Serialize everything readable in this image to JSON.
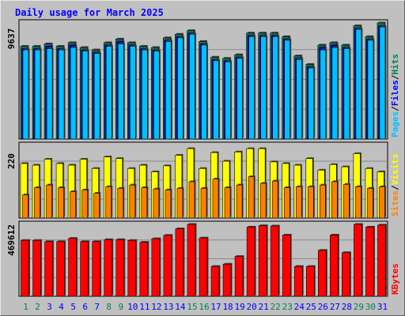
{
  "chart_data": {
    "type": "bar",
    "title": "Daily usage for March 2025",
    "categories": [
      "1",
      "2",
      "3",
      "4",
      "5",
      "6",
      "7",
      "8",
      "9",
      "10",
      "11",
      "12",
      "13",
      "14",
      "15",
      "16",
      "17",
      "18",
      "19",
      "20",
      "21",
      "22",
      "23",
      "24",
      "25",
      "26",
      "27",
      "28",
      "29",
      "30",
      "31"
    ],
    "weekend_days": [
      "1",
      "2",
      "8",
      "9",
      "15",
      "16",
      "22",
      "23",
      "29",
      "30"
    ],
    "colors": {
      "title": "#0000ff",
      "hits": "#00805c",
      "files": "#0000ff",
      "pages": "#00c0ff",
      "visits": "#ffff00",
      "sites": "#ff8000",
      "kbytes": "#ff0000",
      "weekend_label": "#00805c",
      "weekday_label": "#0000ff",
      "background": "#c0c0c0"
    },
    "panels": [
      {
        "id": "hits-files-pages",
        "max_label": "9637",
        "ylim": [
          0,
          9637
        ],
        "legend": [
          "Pages",
          "Files",
          "Hits"
        ],
        "series": [
          {
            "name": "Hits",
            "values": [
              7700,
              7700,
              7900,
              7700,
              8000,
              7600,
              7400,
              8000,
              8300,
              8000,
              7700,
              7600,
              8400,
              8700,
              9000,
              8100,
              6800,
              6700,
              7000,
              8800,
              8800,
              8800,
              8500,
              6900,
              6200,
              7800,
              8000,
              7800,
              9400,
              8500,
              9637
            ]
          },
          {
            "name": "Files",
            "values": [
              7500,
              7500,
              7700,
              7500,
              7800,
              7400,
              7200,
              7800,
              8100,
              7800,
              7500,
              7400,
              8200,
              8500,
              8800,
              7900,
              6600,
              6500,
              6800,
              8600,
              8600,
              8600,
              8300,
              6700,
              6000,
              7600,
              7800,
              7600,
              9200,
              8300,
              9400
            ]
          },
          {
            "name": "Pages",
            "values": [
              7400,
              7400,
              7500,
              7400,
              7600,
              7300,
              7100,
              7700,
              7900,
              7700,
              7400,
              7300,
              8100,
              8400,
              8700,
              7800,
              6500,
              6400,
              6700,
              8500,
              8500,
              8500,
              8200,
              6600,
              5900,
              7400,
              7600,
              7500,
              9100,
              8200,
              9300
            ]
          }
        ]
      },
      {
        "id": "visits-sites",
        "max_label": "220",
        "ylim": [
          0,
          220
        ],
        "legend": [
          "Sites",
          "Visits"
        ],
        "series": [
          {
            "name": "Visits",
            "values": [
              165,
              160,
              178,
              165,
              160,
              178,
              150,
              185,
              180,
              150,
              160,
              140,
              158,
              190,
              210,
              150,
              198,
              172,
              200,
              210,
              210,
              170,
              165,
              160,
              180,
              145,
              162,
              155,
              195,
              150,
              140
            ]
          },
          {
            "name": "Sites",
            "values": [
              70,
              92,
              100,
              92,
              80,
              85,
              75,
              95,
              90,
              100,
              92,
              88,
              85,
              90,
              110,
              90,
              118,
              92,
              100,
              125,
              105,
              112,
              92,
              95,
              95,
              100,
              110,
              102,
              95,
              90,
              95
            ]
          }
        ]
      },
      {
        "id": "kbytes",
        "max_label": "469612",
        "ylim": [
          0,
          469612
        ],
        "legend": [
          "KBytes"
        ],
        "series": [
          {
            "name": "KBytes",
            "values": [
              365000,
              365000,
              357000,
              357000,
              378000,
              357000,
              357000,
              370000,
              370000,
              365000,
              353000,
              376000,
              398000,
              441000,
              469612,
              381000,
              195000,
              210000,
              260000,
              452000,
              461000,
              459000,
              400000,
              195000,
              195000,
              300000,
              400000,
              285000,
              469612,
              452000,
              465000
            ]
          }
        ]
      }
    ],
    "grid": true,
    "xlabel": "",
    "ylabel": ""
  }
}
